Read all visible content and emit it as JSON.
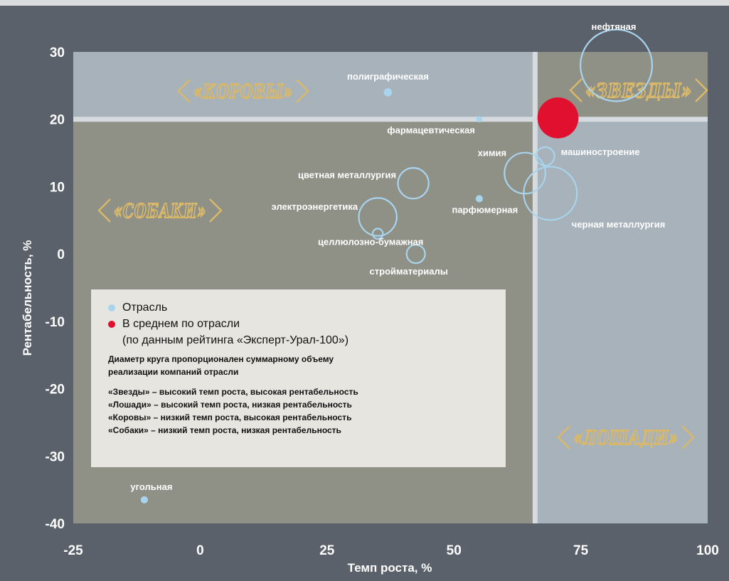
{
  "chart_data": {
    "type": "bubble",
    "xlabel": "Темп роста, %",
    "ylabel": "Рентабельность, %",
    "xlim": [
      -25,
      100
    ],
    "ylim": [
      -40,
      30
    ],
    "x_ticks": [
      "-25",
      "0",
      "25",
      "50",
      "75",
      "100"
    ],
    "y_ticks": [
      "30",
      "20",
      "10",
      "0",
      "-10",
      "-20",
      "-30",
      "-40"
    ],
    "average": {
      "x": 66,
      "y": 20
    },
    "average_point": {
      "x": 70.5,
      "y": 20.2,
      "size": 4.0
    },
    "points": [
      {
        "name": "нефтяная",
        "x": 82,
        "y": 28,
        "size": 7.0
      },
      {
        "name": "полиграфическая",
        "x": 37,
        "y": 24,
        "size": 0.8
      },
      {
        "name": "фармацевтическая",
        "x": 55,
        "y": 20,
        "size": 0.6
      },
      {
        "name": "машиностроение",
        "x": 68,
        "y": 14.5,
        "size": 1.8
      },
      {
        "name": "химия",
        "x": 64,
        "y": 12,
        "size": 4.0
      },
      {
        "name": "цветная металлургия",
        "x": 42,
        "y": 10.5,
        "size": 3.0
      },
      {
        "name": "черная металлургия",
        "x": 69,
        "y": 9,
        "size": 5.2
      },
      {
        "name": "парфюмерная",
        "x": 55,
        "y": 8.2,
        "size": 0.7
      },
      {
        "name": "электроэнергетика",
        "x": 35,
        "y": 5.5,
        "size": 3.7
      },
      {
        "name": "целлюлозно-бумажная",
        "x": 35,
        "y": 3,
        "size": 1.0
      },
      {
        "name": "стройматериалы",
        "x": 42.5,
        "y": 0,
        "size": 1.8
      },
      {
        "name": "угольная",
        "x": -11,
        "y": -36.5,
        "size": 0.7
      }
    ],
    "quadrant_labels": [
      "«КОРОВЫ»",
      "«ЗВЕЗДЫ»",
      "«СОБАКИ»",
      "«ЛОШАДИ»"
    ],
    "colors": {
      "frame": "#5b616a",
      "quadrant_top_left": "#a7b2bb",
      "quadrant_top_right": "#8f9086",
      "quadrant_bottom_left": "#8f9086",
      "quadrant_bottom_right": "#a7b2bb",
      "divider": "#d6dbe0",
      "bubble": "#a8d4ee",
      "average": "#e0102e",
      "mascot": "#d9b86a"
    }
  },
  "legend": {
    "industry": "Отрасль",
    "average": "В среднем по отрасли",
    "average_note": "(по данным рейтинга «Эксперт-Урал-100»)",
    "diameter_note_1": "Диаметр круга пропорционален суммарному объему",
    "diameter_note_2": "реализации компаний отрасли",
    "classes": [
      "«Звезды» – высокий темп роста, высокая рентабельность",
      "«Лошади» – высокий темп роста, низкая рентабельность",
      "«Коровы» – низкий темп роста, высокая рентабельность",
      "«Собаки» – низкий темп роста, низкая рентабельность"
    ]
  }
}
